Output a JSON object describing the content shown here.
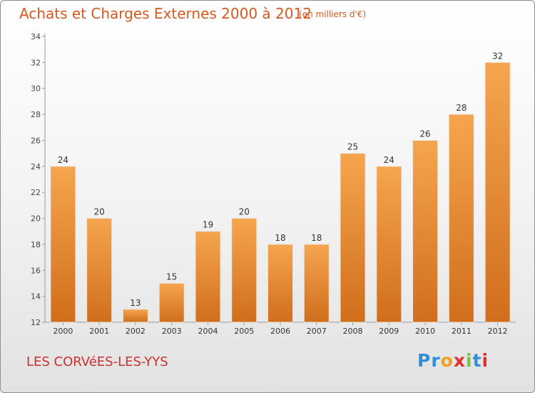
{
  "header": {
    "title": "Achats et Charges Externes 2000 à 2012",
    "unit": "(en milliers d'€)"
  },
  "footer": {
    "commune": "LES CORVéES-LES-YYS",
    "logo_text": "Proxiti",
    "logo_colors": [
      "#2f8fd8",
      "#2f8fd8",
      "#f0a020",
      "#e03030",
      "#7cc242",
      "#2f8fd8",
      "#e03030"
    ]
  },
  "chart_data": {
    "type": "bar",
    "title": "Achats et Charges Externes 2000 à 2012",
    "categories": [
      "2000",
      "2001",
      "2002",
      "2003",
      "2004",
      "2005",
      "2006",
      "2007",
      "2008",
      "2009",
      "2010",
      "2011",
      "2012"
    ],
    "values": [
      24,
      20,
      13,
      15,
      19,
      20,
      18,
      18,
      25,
      24,
      26,
      28,
      32
    ],
    "ylim": [
      12,
      34
    ],
    "yticks": [
      12,
      14,
      16,
      18,
      20,
      22,
      24,
      26,
      28,
      30,
      32,
      34
    ],
    "bar_color_top": "#f6a54f",
    "bar_color_bottom": "#d06e1c",
    "grid": false
  }
}
